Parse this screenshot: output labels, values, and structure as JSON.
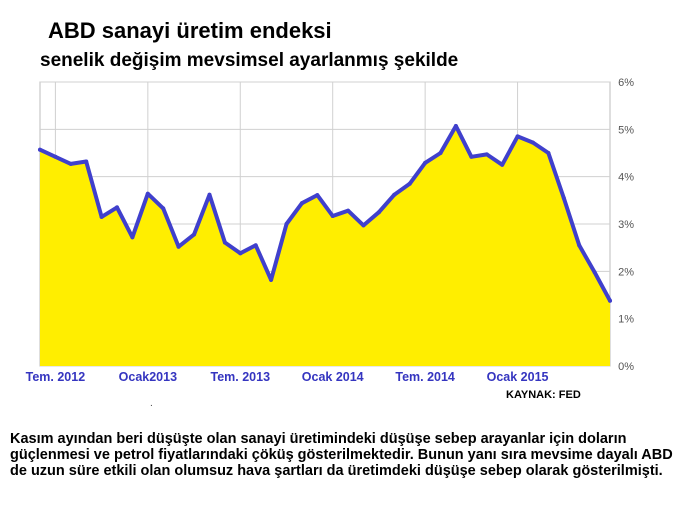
{
  "title": "ABD sanayi üretim endeksi",
  "subtitle": "senelik değişim mevsimsel ayarlanmış şekilde",
  "source": "KAYNAK: FED",
  "caption": "Kasım ayından beri düşüşte olan sanayi üretimindeki düşüşe sebep arayanlar için doların güçlenmesi ve petrol fiyatlarındaki çöküş gösterilmektedir. Bunun yanı sıra mevsime dayalı ABD de uzun süre etkili olan olumsuz hava şartları da üretimdeki düşüşe sebep olarak gösterilmişti.",
  "colors": {
    "line": "#4040cc",
    "fill": "#ffee00",
    "x_tick_text": "#3535c0",
    "y_tick_text": "#555555",
    "grid": "#d0d0d0"
  },
  "chart_data": {
    "type": "area",
    "title": "ABD sanayi üretim endeksi",
    "subtitle": "senelik değişim mevsimsel ayarlanmış şekilde",
    "xlabel": "",
    "ylabel": "",
    "ylim": [
      0,
      6
    ],
    "y_ticks": [
      "0%",
      "1%",
      "2%",
      "3%",
      "4%",
      "5%",
      "6%"
    ],
    "x_ticks": [
      "Tem. 2012",
      "Ocak2013",
      "Tem. 2013",
      "Ocak 2014",
      "Tem. 2014",
      "Ocak 2015"
    ],
    "x_tick_index": [
      1,
      7,
      13,
      19,
      25,
      31
    ],
    "grid": true,
    "series": [
      {
        "values": [
          4.57,
          4.42,
          4.27,
          4.32,
          3.15,
          3.35,
          2.72,
          3.64,
          3.33,
          2.52,
          2.78,
          3.62,
          2.61,
          2.38,
          2.55,
          1.82,
          3.0,
          3.44,
          3.61,
          3.17,
          3.28,
          2.97,
          3.25,
          3.62,
          3.85,
          4.29,
          4.5,
          5.07,
          4.42,
          4.47,
          4.25,
          4.85,
          4.72,
          4.5,
          3.55,
          2.55,
          1.98,
          1.38
        ]
      }
    ]
  }
}
